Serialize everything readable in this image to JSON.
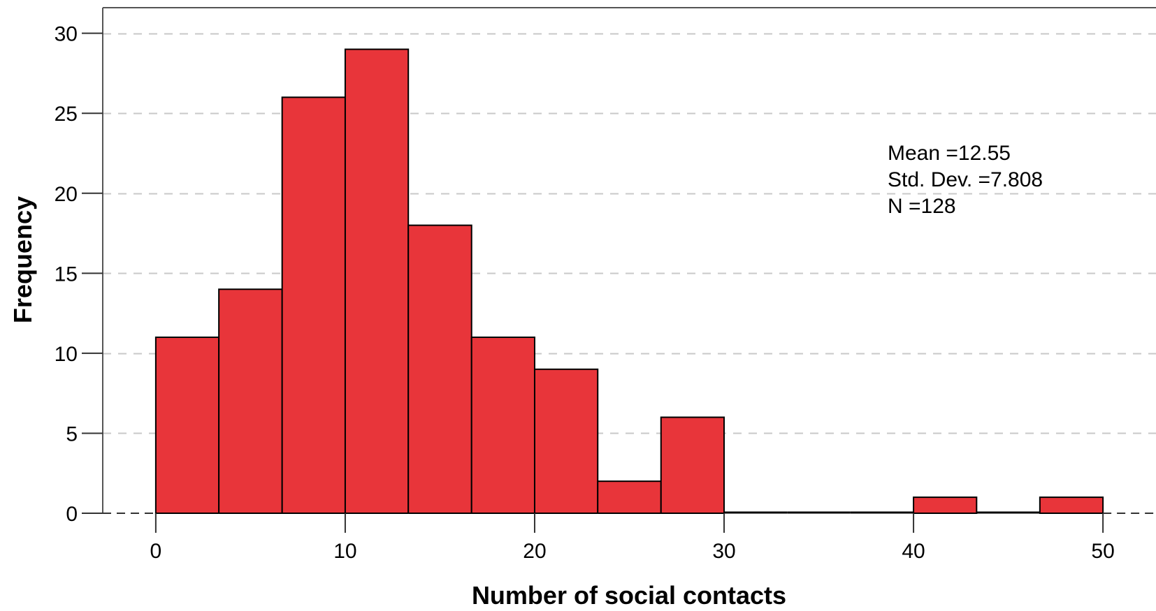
{
  "chart_data": {
    "type": "bar",
    "bin_width": 3.33,
    "bins": [
      {
        "start": 0,
        "end": 3.33,
        "frequency": 11
      },
      {
        "start": 3.33,
        "end": 6.67,
        "frequency": 14
      },
      {
        "start": 6.67,
        "end": 10,
        "frequency": 26
      },
      {
        "start": 10,
        "end": 13.33,
        "frequency": 29
      },
      {
        "start": 13.33,
        "end": 16.67,
        "frequency": 18
      },
      {
        "start": 16.67,
        "end": 20,
        "frequency": 11
      },
      {
        "start": 20,
        "end": 23.33,
        "frequency": 9
      },
      {
        "start": 23.33,
        "end": 26.67,
        "frequency": 2
      },
      {
        "start": 26.67,
        "end": 30,
        "frequency": 6
      },
      {
        "start": 30,
        "end": 33.33,
        "frequency": 0
      },
      {
        "start": 33.33,
        "end": 36.67,
        "frequency": 0
      },
      {
        "start": 36.67,
        "end": 40,
        "frequency": 0
      },
      {
        "start": 40,
        "end": 43.33,
        "frequency": 1
      },
      {
        "start": 43.33,
        "end": 46.67,
        "frequency": 0
      },
      {
        "start": 46.67,
        "end": 50,
        "frequency": 1
      }
    ],
    "xlabel": "Number of social contacts",
    "ylabel": "Frequency",
    "x_ticks": [
      0,
      10,
      20,
      30,
      40,
      50
    ],
    "y_ticks": [
      0,
      5,
      10,
      15,
      20,
      25,
      30
    ],
    "xlim": [
      -2.8,
      52.8
    ],
    "ylim": [
      0,
      31.6
    ],
    "grid": "horizontal dashed",
    "bar_color": "#e8353a",
    "stats": {
      "mean": "Mean =12.55",
      "std_dev": "Std. Dev. =7.808",
      "n": "N =128"
    }
  }
}
